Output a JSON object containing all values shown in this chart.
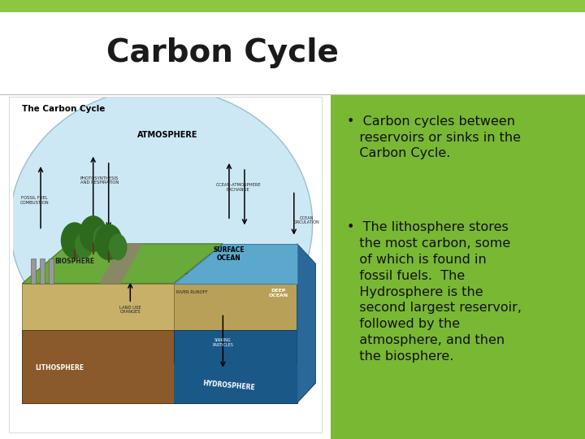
{
  "title": "Carbon Cycle",
  "title_fontsize": 28,
  "title_color": "#1a1a1a",
  "top_bar_color": "#8dc63f",
  "top_bar_height": 0.028,
  "background_color": "#ffffff",
  "right_panel_color": "#79b833",
  "bullet1": "Carbon cycles between reservoirs or sinks in the Carbon Cycle.",
  "bullet2": "The lithosphere stores\nthe most carbon, some\nof which is found in\nfossil fuels.  The\nHydrosphere is the\nsecond largest reservoir,\nfollowed by the\natmosphere, and then\nthe biosphere.",
  "bullet_fontsize": 11.5,
  "bullet_color": "#111111",
  "divider_color": "#bbbbbb",
  "slide_bg": "#ffffff"
}
